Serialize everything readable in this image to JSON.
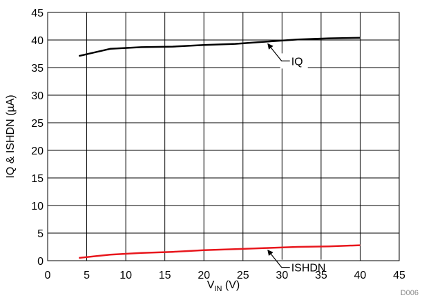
{
  "chart_data": {
    "type": "line",
    "xlabel_main": "V",
    "xlabel_sub": "IN",
    "xlabel_unit": " (V)",
    "ylabel": "IQ & ISHDN (µA)",
    "xlim": [
      0,
      45
    ],
    "ylim": [
      0,
      45
    ],
    "xticks": [
      "0",
      "5",
      "10",
      "15",
      "20",
      "25",
      "30",
      "35",
      "40",
      "45"
    ],
    "yticks": [
      "0",
      "5",
      "10",
      "15",
      "20",
      "25",
      "30",
      "35",
      "40",
      "45"
    ],
    "grid": true,
    "series": [
      {
        "name": "IQ",
        "color": "#000000",
        "x": [
          4,
          8,
          12,
          16,
          20,
          24,
          28,
          32,
          36,
          40
        ],
        "y": [
          37.1,
          38.4,
          38.7,
          38.8,
          39.1,
          39.3,
          39.7,
          40.1,
          40.3,
          40.4
        ]
      },
      {
        "name": "ISHDN",
        "color": "#e8161c",
        "x": [
          4,
          8,
          12,
          16,
          20,
          24,
          28,
          32,
          36,
          40
        ],
        "y": [
          0.5,
          1.1,
          1.4,
          1.6,
          1.9,
          2.1,
          2.3,
          2.5,
          2.6,
          2.8
        ]
      }
    ],
    "annotations": [
      {
        "label": "IQ",
        "series": "IQ",
        "x": 28,
        "y": 39.7
      },
      {
        "label": "ISHDN",
        "series": "ISHDN",
        "x": 28,
        "y": 2.3
      }
    ],
    "footer": "D006"
  }
}
